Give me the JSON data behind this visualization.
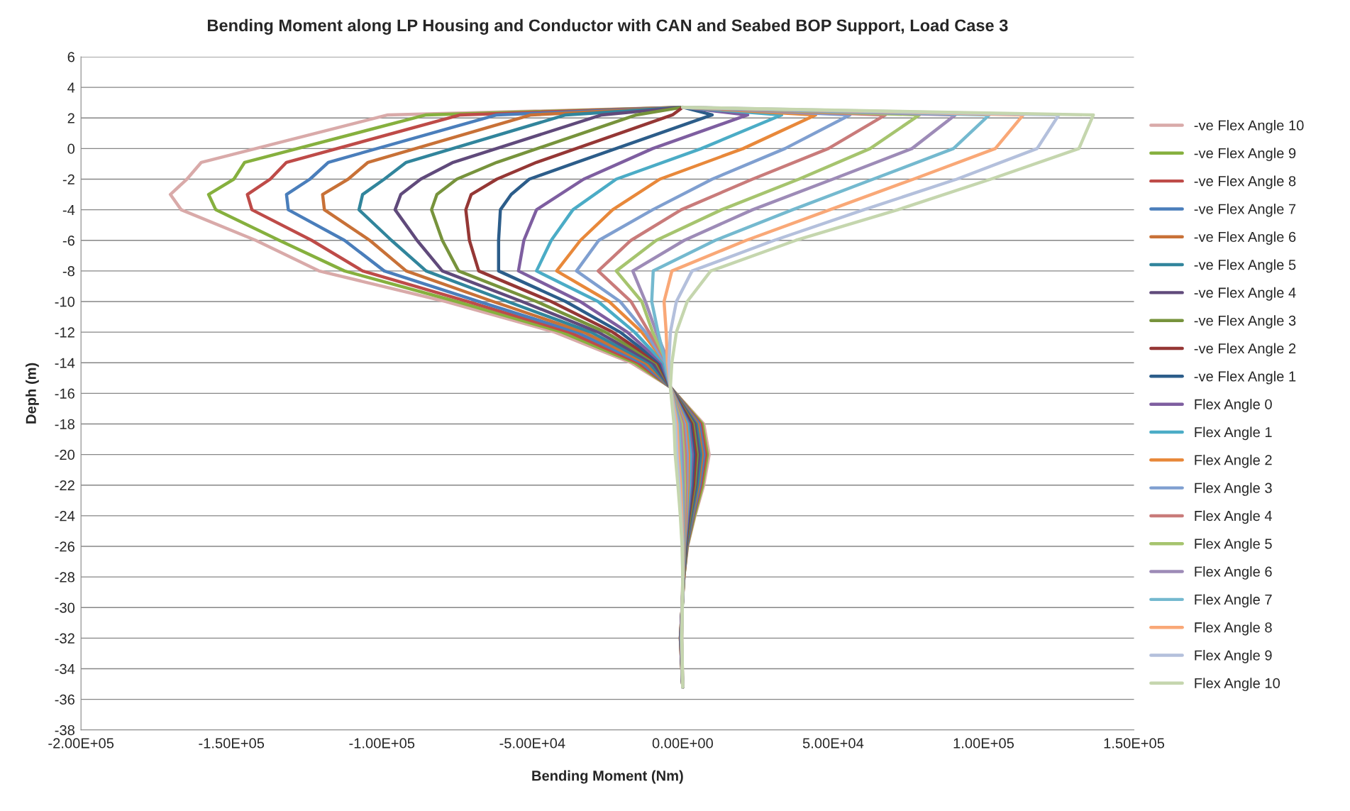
{
  "chart_data": {
    "type": "line",
    "title": "Bending Moment along LP Housing and Conductor with CAN and Seabed BOP Support, Load Case 3",
    "xlabel": "Bending Moment (Nm)",
    "ylabel": "Deph (m)",
    "xlim": [
      -200000,
      150000
    ],
    "xticks": [
      {
        "value": -200000,
        "label": "-2.00E+05"
      },
      {
        "value": -150000,
        "label": "-1.50E+05"
      },
      {
        "value": -100000,
        "label": "-1.00E+05"
      },
      {
        "value": -50000,
        "label": "-5.00E+04"
      },
      {
        "value": 0,
        "label": "0.00E+00"
      },
      {
        "value": 50000,
        "label": "5.00E+04"
      },
      {
        "value": 100000,
        "label": "1.00E+05"
      },
      {
        "value": 150000,
        "label": "1.50E+05"
      }
    ],
    "ylim": [
      -38,
      6
    ],
    "yticks": [
      -38,
      -36,
      -34,
      -32,
      -30,
      -28,
      -26,
      -24,
      -22,
      -20,
      -18,
      -16,
      -14,
      -12,
      -10,
      -8,
      -6,
      -4,
      -2,
      0,
      2,
      4,
      6
    ],
    "grid": "y",
    "legend": "right",
    "series": [
      {
        "name": "-ve Flex Angle 10",
        "color": "#d9aaa9",
        "x": [
          0,
          -98000,
          -160000,
          -164800,
          -170300,
          -166700,
          -141900,
          -120900,
          -78700,
          -42500,
          -17200,
          -4100,
          7000,
          8800,
          7000,
          4100,
          1600,
          400,
          -800,
          0
        ],
        "values": [
          2.7,
          2.2,
          -0.9,
          -2,
          -3,
          -4,
          -6,
          -8,
          -10,
          -12,
          -14,
          -15.6,
          -18,
          -20,
          -22,
          -24,
          -26,
          -28,
          -32,
          -35.2
        ]
      },
      {
        "name": "-ve Flex Angle 9",
        "color": "#86b03e",
        "x": [
          0,
          -85300,
          -145600,
          -149200,
          -157600,
          -155200,
          -134100,
          -112400,
          -75100,
          -40100,
          -16000,
          -4100,
          6500,
          8200,
          6600,
          3900,
          1500,
          400,
          -800,
          0
        ],
        "values": [
          2.7,
          2.2,
          -0.9,
          -2,
          -3,
          -4,
          -6,
          -8,
          -10,
          -12,
          -14,
          -15.6,
          -18,
          -20,
          -22,
          -24,
          -26,
          -28,
          -32,
          -35.2
        ]
      },
      {
        "name": "-ve Flex Angle 8",
        "color": "#be4b48",
        "x": [
          0,
          -73900,
          -131700,
          -137100,
          -144700,
          -143200,
          -123300,
          -106400,
          -71500,
          -37700,
          -14800,
          -4100,
          6000,
          7700,
          6100,
          3600,
          1400,
          400,
          -800,
          0
        ],
        "values": [
          2.7,
          2.2,
          -0.9,
          -2,
          -3,
          -4,
          -6,
          -8,
          -10,
          -12,
          -14,
          -15.6,
          -18,
          -20,
          -22,
          -24,
          -26,
          -28,
          -32,
          -35.2
        ]
      },
      {
        "name": "-ve Flex Angle 7",
        "color": "#4a7ebb",
        "x": [
          0,
          -61800,
          -117800,
          -123900,
          -131700,
          -131100,
          -112400,
          -99200,
          -67800,
          -35300,
          -13600,
          -4100,
          5500,
          7100,
          5700,
          3400,
          1300,
          300
        ],
        "values": [
          2.7,
          2.2,
          -0.9,
          -2,
          -3,
          -4,
          -6,
          -8,
          -10,
          -12,
          -14,
          -15.6,
          -18,
          -20,
          -22,
          -24,
          -26,
          -28
        ]
      },
      {
        "name": "-ve Flex Angle 6",
        "color": "#c87137",
        "x": [
          0,
          -50400,
          -104600,
          -111200,
          -119700,
          -119100,
          -104000,
          -91900,
          -63000,
          -32900,
          -12400,
          -4100,
          5000,
          6500,
          5300,
          3100,
          1200,
          300,
          -700,
          0
        ],
        "values": [
          2.7,
          2.2,
          -0.9,
          -2,
          -3,
          -4,
          -6,
          -8,
          -10,
          -12,
          -14,
          -15.6,
          -18,
          -20,
          -22,
          -24,
          -26,
          -28,
          -32,
          -35.2
        ]
      },
      {
        "name": "-ve Flex Angle 5",
        "color": "#31859c",
        "x": [
          0,
          -38900,
          -91900,
          -99200,
          -106400,
          -107600,
          -96800,
          -85300,
          -58200,
          -30500,
          -11200,
          -4100,
          4500,
          6000,
          4900,
          2900,
          1200,
          300,
          -700,
          0
        ],
        "values": [
          2.7,
          2.2,
          -0.9,
          -2,
          -3,
          -4,
          -6,
          -8,
          -10,
          -12,
          -14,
          -15.6,
          -18,
          -20,
          -22,
          -24,
          -26,
          -28,
          -32,
          -35.2
        ]
      },
      {
        "name": "-ve Flex Angle 4",
        "color": "#604a7b",
        "x": [
          0,
          -26900,
          -76300,
          -87100,
          -93700,
          -95600,
          -88300,
          -79900,
          -53400,
          -28100,
          -10000,
          -4100,
          4000,
          5400,
          4400,
          2600,
          1100,
          300,
          -700,
          0
        ],
        "values": [
          2.7,
          2.2,
          -0.9,
          -2,
          -3,
          -4,
          -6,
          -8,
          -10,
          -12,
          -14,
          -15.6,
          -18,
          -20,
          -22,
          -24,
          -26,
          -28,
          -32,
          -35.2
        ]
      },
      {
        "name": "-ve Flex Angle 3",
        "color": "#77933c",
        "x": [
          0,
          -15400,
          -61800,
          -75100,
          -81700,
          -83500,
          -79900,
          -74500,
          -48600,
          -25700,
          -8800,
          -4100,
          3500,
          4800,
          4000,
          2400,
          1000,
          300,
          -600,
          0
        ],
        "values": [
          2.7,
          2.2,
          -0.9,
          -2,
          -3,
          -4,
          -6,
          -8,
          -10,
          -12,
          -14,
          -15.6,
          -18,
          -20,
          -22,
          -24,
          -26,
          -28,
          -32,
          -35.2
        ]
      },
      {
        "name": "-ve Flex Angle 2",
        "color": "#953735",
        "x": [
          0,
          -3400,
          -48600,
          -61800,
          -70300,
          -72100,
          -70900,
          -67800,
          -43700,
          -23300,
          -8200,
          -4100,
          3000,
          4300,
          3600,
          2100,
          900,
          200,
          -600,
          0
        ],
        "values": [
          2.7,
          2.2,
          -0.9,
          -2,
          -3,
          -4,
          -6,
          -8,
          -10,
          -12,
          -14,
          -15.6,
          -18,
          -20,
          -22,
          -24,
          -26,
          -28,
          -32,
          -35.2
        ]
      },
      {
        "name": "-ve Flex Angle 1",
        "color": "#2c5d8a",
        "x": [
          0,
          9800,
          -35300,
          -51000,
          -57000,
          -60600,
          -61200,
          -61200,
          -38900,
          -20800,
          -7600,
          -4100,
          2500,
          3700,
          3100,
          1900,
          800,
          200,
          -600,
          0
        ],
        "values": [
          2.7,
          2.2,
          -0.9,
          -2,
          -3,
          -4,
          -6,
          -8,
          -10,
          -12,
          -14,
          -15.6,
          -18,
          -20,
          -22,
          -24,
          -26,
          -28,
          -32,
          -35.2
        ]
      },
      {
        "name": "Flex Angle 0",
        "color": "#7e5ea0",
        "x": [
          0,
          21600,
          -10000,
          -32900,
          -48600,
          -52800,
          -54600,
          -34100,
          -18400,
          -7000,
          -4100,
          2100,
          3200,
          2700,
          1700,
          700,
          200,
          -600,
          0
        ],
        "values": [
          2.7,
          2.2,
          0,
          -2,
          -4,
          -6,
          -8,
          -10,
          -12,
          -14,
          -15.6,
          -18,
          -20,
          -22,
          -24,
          -26,
          -28,
          -32,
          -35.2
        ]
      },
      {
        "name": "Flex Angle 1",
        "color": "#4bacc6",
        "x": [
          0,
          32900,
          6200,
          -22100,
          -36500,
          -43700,
          -48600,
          -28100,
          -16000,
          -6400,
          -4100,
          1600,
          2600,
          2300,
          1400,
          600,
          200
        ],
        "values": [
          2.7,
          2.2,
          0,
          -2,
          -4,
          -6,
          -8,
          -10,
          -12,
          -14,
          -15.6,
          -18,
          -20,
          -22,
          -24,
          -26,
          -28
        ]
      },
      {
        "name": "Flex Angle 2",
        "color": "#e8883a",
        "x": [
          0,
          44200,
          20100,
          -7600,
          -23300,
          -34000,
          -41900,
          -24500,
          -13600,
          -5800,
          -4100,
          1100,
          2000,
          1800,
          1200,
          500,
          200
        ],
        "values": [
          2.7,
          2.2,
          0,
          -2,
          -4,
          -6,
          -8,
          -10,
          -12,
          -14,
          -15.6,
          -18,
          -20,
          -22,
          -24,
          -26,
          -28
        ]
      },
      {
        "name": "Flex Angle 3",
        "color": "#7f9fd0",
        "x": [
          0,
          55600,
          34000,
          9800,
          -10000,
          -27900,
          -35300,
          -20800,
          -12400,
          -5800,
          -4100,
          600,
          1500,
          1400,
          900,
          400,
          100,
          -500,
          0
        ],
        "values": [
          2.7,
          2.2,
          0,
          -2,
          -4,
          -6,
          -8,
          -10,
          -12,
          -14,
          -15.6,
          -18,
          -20,
          -22,
          -24,
          -26,
          -28,
          -32,
          -35.2
        ]
      },
      {
        "name": "Flex Angle 4",
        "color": "#c97b7a",
        "x": [
          0,
          67400,
          48400,
          23200,
          -500,
          -17200,
          -28100,
          -17200,
          -11200,
          -5200,
          -4100,
          100,
          900,
          1000,
          700,
          300,
          100,
          -500,
          0
        ],
        "values": [
          2.7,
          2.2,
          0,
          -2,
          -4,
          -6,
          -8,
          -10,
          -12,
          -14,
          -15.6,
          -18,
          -20,
          -22,
          -24,
          -26,
          -28,
          -32,
          -35.2
        ]
      },
      {
        "name": "Flex Angle 5",
        "color": "#a6c46e",
        "x": [
          0,
          78700,
          62300,
          38600,
          12900,
          -8800,
          -22100,
          -13600,
          -10000,
          -5200,
          -4100,
          -400,
          300,
          600,
          400,
          300,
          100,
          -400,
          0
        ],
        "values": [
          2.7,
          2.2,
          0,
          -2,
          -4,
          -6,
          -8,
          -10,
          -12,
          -14,
          -15.6,
          -18,
          -20,
          -22,
          -24,
          -26,
          -28,
          -32,
          -35.2
        ]
      },
      {
        "name": "Flex Angle 6",
        "color": "#9d8bb7",
        "x": [
          0,
          90600,
          76200,
          49900,
          23200,
          500,
          -16600,
          -12400,
          -8800,
          -4600,
          -4100,
          -900,
          -200,
          100,
          200,
          200,
          100,
          -400,
          0
        ],
        "values": [
          2.7,
          2.2,
          0,
          -2,
          -4,
          -6,
          -8,
          -10,
          -12,
          -14,
          -15.6,
          -18,
          -20,
          -22,
          -24,
          -26,
          -28,
          -32,
          -35.2
        ]
      },
      {
        "name": "Flex Angle 7",
        "color": "#74b9cf",
        "x": [
          0,
          101900,
          90000,
          63300,
          36500,
          10800,
          -9800,
          -10300,
          -8200,
          -5700,
          -4100,
          -1400,
          -800,
          -300,
          -100,
          100,
          100,
          -400,
          0
        ],
        "values": [
          2.7,
          2.2,
          0,
          -2,
          -4,
          -6,
          -8,
          -10,
          -12,
          -14,
          -15.6,
          -18,
          -20,
          -22,
          -24,
          -26,
          -28,
          -32,
          -35.2
        ]
      },
      {
        "name": "Flex Angle 8",
        "color": "#f9a877",
        "x": [
          0,
          113200,
          103900,
          76700,
          48900,
          21100,
          -3600,
          -6200,
          -5500,
          -5100,
          -4100,
          -1900,
          -1400,
          -700,
          -300,
          0,
          0,
          -300,
          0
        ],
        "values": [
          2.7,
          2.2,
          0,
          -2,
          -4,
          -6,
          -8,
          -10,
          -12,
          -14,
          -15.6,
          -18,
          -20,
          -22,
          -24,
          -26,
          -28,
          -32,
          -35.2
        ]
      },
      {
        "name": "Flex Angle 9",
        "color": "#b4c0dc",
        "x": [
          0,
          125000,
          117800,
          91100,
          60200,
          30400,
          3100,
          -2100,
          -4100,
          -4600,
          -4100,
          -2400,
          -1900,
          -1200,
          -600,
          -100,
          0,
          -300,
          0
        ],
        "values": [
          2.7,
          2.2,
          0,
          -2,
          -4,
          -6,
          -8,
          -10,
          -12,
          -14,
          -15.6,
          -18,
          -20,
          -22,
          -24,
          -26,
          -28,
          -32,
          -35.2
        ]
      },
      {
        "name": "Flex Angle 10",
        "color": "#c5d6ae",
        "x": [
          0,
          136500,
          131700,
          102400,
          71500,
          37600,
          9300,
          1500,
          -2100,
          -3600,
          -4100,
          -2900,
          -2500,
          -1600,
          -800,
          -200,
          0,
          -300,
          0
        ],
        "values": [
          2.7,
          2.2,
          0,
          -2,
          -4,
          -6,
          -8,
          -10,
          -12,
          -14,
          -15.6,
          -18,
          -20,
          -22,
          -24,
          -26,
          -28,
          -32,
          -35.2
        ]
      }
    ]
  }
}
